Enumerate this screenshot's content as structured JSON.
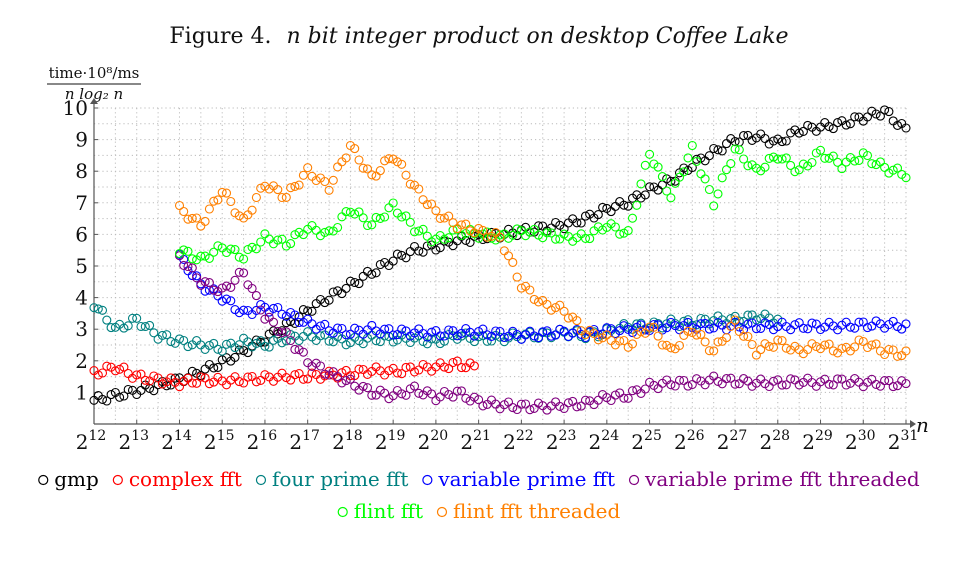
{
  "chart_data": {
    "type": "scatter",
    "title": "Figure 4. n bit integer product on desktop Coffee Lake",
    "title_prefix": "Figure 4.",
    "title_rest": "n bit integer product on desktop Coffee Lake",
    "ylabel_numerator": "time·10⁸/ms",
    "ylabel_denominator": "n log₂ n",
    "xlabel": "n",
    "x_scale": "log2",
    "xlim": [
      12,
      31
    ],
    "ylim": [
      0,
      10
    ],
    "x_ticks": [
      12,
      13,
      14,
      15,
      16,
      17,
      18,
      19,
      20,
      21,
      22,
      23,
      24,
      25,
      26,
      27,
      28,
      29,
      30,
      31
    ],
    "x_tick_base": "2",
    "y_ticks": [
      1,
      2,
      3,
      4,
      5,
      6,
      7,
      8,
      9,
      10
    ],
    "grid": true,
    "legend_position": "bottom",
    "series": [
      {
        "name": "gmp",
        "color": "#000000",
        "points": [
          [
            12,
            0.75
          ],
          [
            12.5,
            0.9
          ],
          [
            13,
            1.05
          ],
          [
            13.5,
            1.2
          ],
          [
            14,
            1.4
          ],
          [
            14.5,
            1.65
          ],
          [
            15,
            1.95
          ],
          [
            15.5,
            2.3
          ],
          [
            16,
            2.7
          ],
          [
            16.5,
            3.1
          ],
          [
            17,
            3.6
          ],
          [
            17.5,
            4.0
          ],
          [
            18,
            4.4
          ],
          [
            18.5,
            4.8
          ],
          [
            19,
            5.2
          ],
          [
            19.5,
            5.5
          ],
          [
            20,
            5.6
          ],
          [
            20.5,
            5.8
          ],
          [
            21,
            5.9
          ],
          [
            21.5,
            6.0
          ],
          [
            22,
            6.1
          ],
          [
            22.5,
            6.2
          ],
          [
            23,
            6.3
          ],
          [
            23.5,
            6.5
          ],
          [
            24,
            6.8
          ],
          [
            24.5,
            7.0
          ],
          [
            25,
            7.4
          ],
          [
            25.5,
            7.7
          ],
          [
            26,
            8.2
          ],
          [
            26.5,
            8.6
          ],
          [
            27,
            9.0
          ],
          [
            27.5,
            9.1
          ],
          [
            28,
            8.9
          ],
          [
            28.5,
            9.3
          ],
          [
            29,
            9.4
          ],
          [
            29.5,
            9.5
          ],
          [
            30,
            9.7
          ],
          [
            30.5,
            9.9
          ],
          [
            31,
            9.3
          ]
        ]
      },
      {
        "name": "complex fft",
        "color": "#ff0000",
        "points": [
          [
            12,
            1.6
          ],
          [
            12.5,
            1.8
          ],
          [
            13,
            1.5
          ],
          [
            13.5,
            1.4
          ],
          [
            14,
            1.3
          ],
          [
            14.5,
            1.4
          ],
          [
            15,
            1.35
          ],
          [
            15.5,
            1.4
          ],
          [
            16,
            1.45
          ],
          [
            16.5,
            1.5
          ],
          [
            17,
            1.5
          ],
          [
            17.5,
            1.55
          ],
          [
            18,
            1.6
          ],
          [
            18.5,
            1.7
          ],
          [
            19,
            1.65
          ],
          [
            19.5,
            1.75
          ],
          [
            20,
            1.8
          ],
          [
            20.5,
            1.9
          ],
          [
            20.9,
            1.8
          ]
        ]
      },
      {
        "name": "four prime fft",
        "color": "#008080",
        "points": [
          [
            12,
            3.8
          ],
          [
            12.5,
            3.0
          ],
          [
            13,
            3.3
          ],
          [
            13.5,
            2.8
          ],
          [
            14,
            2.6
          ],
          [
            14.5,
            2.5
          ],
          [
            15,
            2.4
          ],
          [
            15.5,
            2.6
          ],
          [
            16,
            2.5
          ],
          [
            16.5,
            2.7
          ],
          [
            17,
            2.8
          ],
          [
            17.5,
            2.7
          ],
          [
            18,
            2.6
          ],
          [
            18.5,
            2.7
          ],
          [
            19,
            2.7
          ],
          [
            19.5,
            2.7
          ],
          [
            20,
            2.6
          ],
          [
            20.5,
            2.8
          ],
          [
            21,
            2.7
          ],
          [
            21.5,
            2.7
          ],
          [
            22,
            2.8
          ],
          [
            22.5,
            2.8
          ],
          [
            23,
            2.9
          ],
          [
            23.5,
            2.8
          ],
          [
            24,
            2.9
          ],
          [
            24.5,
            3.1
          ],
          [
            25,
            3.1
          ],
          [
            25.5,
            3.2
          ],
          [
            26,
            3.2
          ],
          [
            26.5,
            3.3
          ],
          [
            27,
            3.3
          ],
          [
            27.5,
            3.4
          ],
          [
            28,
            3.3
          ]
        ]
      },
      {
        "name": "variable prime fft",
        "color": "#0000ff",
        "points": [
          [
            14,
            5.3
          ],
          [
            14.5,
            4.4
          ],
          [
            15,
            4.0
          ],
          [
            15.5,
            3.5
          ],
          [
            16,
            3.7
          ],
          [
            16.5,
            3.5
          ],
          [
            17,
            3.2
          ],
          [
            17.5,
            3.0
          ],
          [
            18,
            2.9
          ],
          [
            18.5,
            3.0
          ],
          [
            19,
            2.9
          ],
          [
            19.5,
            2.9
          ],
          [
            20,
            2.85
          ],
          [
            20.5,
            2.9
          ],
          [
            21,
            2.9
          ],
          [
            21.5,
            2.85
          ],
          [
            22,
            2.8
          ],
          [
            22.5,
            2.85
          ],
          [
            23,
            2.9
          ],
          [
            23.5,
            2.85
          ],
          [
            24,
            2.95
          ],
          [
            24.5,
            3.0
          ],
          [
            25,
            3.05
          ],
          [
            25.5,
            3.1
          ],
          [
            26,
            3.1
          ],
          [
            26.5,
            3.1
          ],
          [
            27,
            3.1
          ],
          [
            27.5,
            3.1
          ],
          [
            28,
            3.1
          ],
          [
            28.5,
            3.1
          ],
          [
            29,
            3.1
          ],
          [
            29.5,
            3.1
          ],
          [
            30,
            3.15
          ],
          [
            30.5,
            3.15
          ],
          [
            31,
            3.1
          ]
        ]
      },
      {
        "name": "variable prime fft threaded",
        "color": "#800080",
        "points": [
          [
            14,
            5.3
          ],
          [
            14.5,
            4.5
          ],
          [
            15,
            4.2
          ],
          [
            15.5,
            4.8
          ],
          [
            16,
            3.4
          ],
          [
            16.5,
            2.8
          ],
          [
            17,
            2.0
          ],
          [
            17.5,
            1.6
          ],
          [
            18,
            1.3
          ],
          [
            18.5,
            1.0
          ],
          [
            19,
            0.9
          ],
          [
            19.5,
            1.1
          ],
          [
            20,
            0.85
          ],
          [
            20.5,
            1.0
          ],
          [
            21,
            0.7
          ],
          [
            21.5,
            0.6
          ],
          [
            22,
            0.55
          ],
          [
            22.5,
            0.55
          ],
          [
            23,
            0.6
          ],
          [
            23.5,
            0.65
          ],
          [
            24,
            0.85
          ],
          [
            24.5,
            0.9
          ],
          [
            25,
            1.2
          ],
          [
            25.5,
            1.3
          ],
          [
            26,
            1.3
          ],
          [
            26.5,
            1.4
          ],
          [
            27,
            1.35
          ],
          [
            27.5,
            1.3
          ],
          [
            28,
            1.3
          ],
          [
            28.5,
            1.35
          ],
          [
            29,
            1.3
          ],
          [
            29.5,
            1.35
          ],
          [
            30,
            1.3
          ],
          [
            30.5,
            1.3
          ],
          [
            31,
            1.25
          ]
        ]
      },
      {
        "name": "flint fft",
        "color": "#00ff00",
        "points": [
          [
            14,
            5.5
          ],
          [
            14.5,
            5.2
          ],
          [
            15,
            5.6
          ],
          [
            15.5,
            5.3
          ],
          [
            16,
            5.9
          ],
          [
            16.5,
            5.7
          ],
          [
            17,
            6.2
          ],
          [
            17.5,
            6.0
          ],
          [
            18,
            6.8
          ],
          [
            18.5,
            6.3
          ],
          [
            19,
            6.9
          ],
          [
            19.5,
            6.2
          ],
          [
            20,
            5.8
          ],
          [
            20.5,
            6.1
          ],
          [
            21,
            6.0
          ],
          [
            21.5,
            5.9
          ],
          [
            22,
            6.1
          ],
          [
            22.5,
            6.0
          ],
          [
            23,
            5.9
          ],
          [
            23.5,
            5.9
          ],
          [
            24,
            6.3
          ],
          [
            24.5,
            6.0
          ],
          [
            25,
            8.6
          ],
          [
            25.5,
            7.2
          ],
          [
            26,
            8.7
          ],
          [
            26.5,
            7.0
          ],
          [
            27,
            8.7
          ],
          [
            27.5,
            8.0
          ],
          [
            28,
            8.5
          ],
          [
            28.5,
            8.0
          ],
          [
            29,
            8.6
          ],
          [
            29.5,
            8.2
          ],
          [
            30,
            8.5
          ],
          [
            30.5,
            8.1
          ],
          [
            31,
            7.9
          ]
        ]
      },
      {
        "name": "flint fft threaded",
        "color": "#ff8000",
        "points": [
          [
            14,
            6.8
          ],
          [
            14.5,
            6.3
          ],
          [
            15,
            7.4
          ],
          [
            15.5,
            6.4
          ],
          [
            16,
            7.6
          ],
          [
            16.5,
            7.2
          ],
          [
            17,
            8.0
          ],
          [
            17.5,
            7.5
          ],
          [
            18,
            8.8
          ],
          [
            18.5,
            7.8
          ],
          [
            19,
            8.5
          ],
          [
            19.5,
            7.5
          ],
          [
            20,
            6.7
          ],
          [
            20.5,
            6.3
          ],
          [
            21,
            6.1
          ],
          [
            21.5,
            5.9
          ],
          [
            22,
            4.4
          ],
          [
            22.5,
            3.8
          ],
          [
            23,
            3.6
          ],
          [
            23.5,
            2.9
          ],
          [
            24,
            2.7
          ],
          [
            24.5,
            2.5
          ],
          [
            25,
            3.1
          ],
          [
            25.5,
            2.3
          ],
          [
            26,
            3.0
          ],
          [
            26.5,
            2.3
          ],
          [
            27,
            3.2
          ],
          [
            27.5,
            2.3
          ],
          [
            28,
            2.6
          ],
          [
            28.5,
            2.3
          ],
          [
            29,
            2.5
          ],
          [
            29.5,
            2.3
          ],
          [
            30,
            2.6
          ],
          [
            30.5,
            2.3
          ],
          [
            31,
            2.2
          ]
        ]
      }
    ]
  }
}
